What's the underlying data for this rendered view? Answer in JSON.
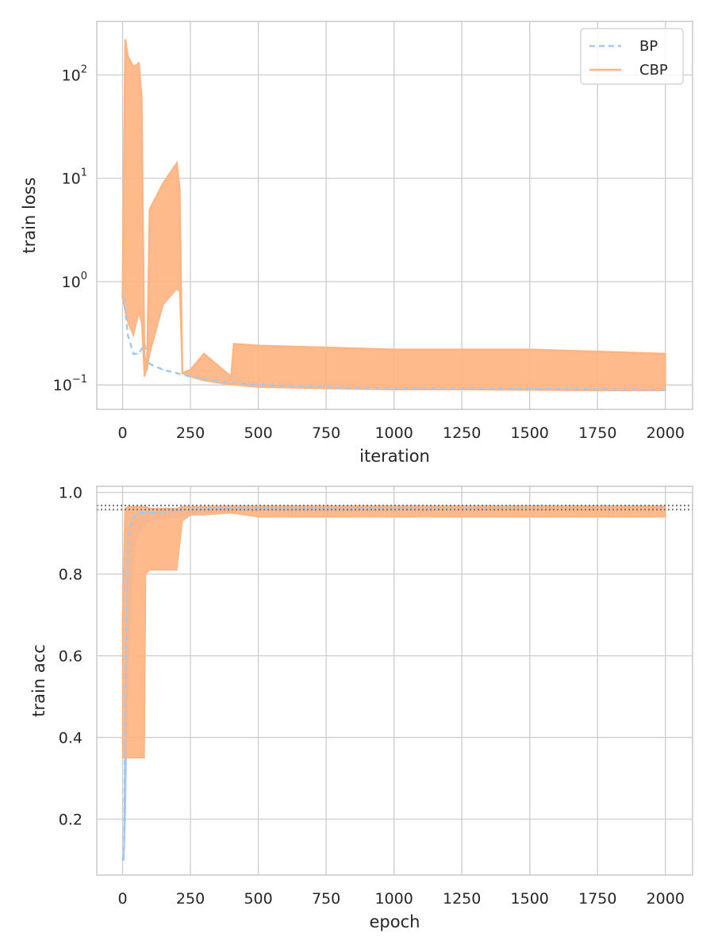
{
  "colors": {
    "bp": "#a1c9f4",
    "cbp": "#ffb482",
    "grid": "#cccccc",
    "frame": "#cccccc",
    "reference": "#707070"
  },
  "chart_data": [
    {
      "type": "line",
      "xlabel": "iteration",
      "ylabel": "train loss",
      "yscale": "log",
      "xlim": [
        -95,
        2100
      ],
      "ylim": [
        0.058,
        330
      ],
      "xticks": [
        0,
        250,
        500,
        750,
        1000,
        1250,
        1500,
        1750,
        2000
      ],
      "yticks": [
        0.1,
        1,
        10,
        100
      ],
      "yticklabels": [
        {
          "base": "10",
          "exp": "−1"
        },
        {
          "base": "10",
          "exp": "0"
        },
        {
          "base": "10",
          "exp": "1"
        },
        {
          "base": "10",
          "exp": "2"
        }
      ],
      "grid": true,
      "legend": {
        "position": "top-right",
        "entries": [
          {
            "label": "BP",
            "style": "dashed",
            "color": "#a1c9f4"
          },
          {
            "label": "CBP",
            "style": "solid",
            "color": "#ffb482"
          }
        ]
      },
      "series": [
        {
          "name": "BP",
          "style": "dashed",
          "color": "#a1c9f4",
          "x": [
            0,
            20,
            40,
            60,
            80,
            100,
            150,
            200,
            250,
            300,
            400,
            500,
            750,
            1000,
            1500,
            2000
          ],
          "y": [
            0.9,
            0.3,
            0.2,
            0.2,
            0.25,
            0.16,
            0.14,
            0.13,
            0.12,
            0.115,
            0.105,
            0.1,
            0.095,
            0.093,
            0.092,
            0.09
          ]
        },
        {
          "name": "CBP",
          "style": "solid",
          "color": "#ffb482",
          "x": [
            0,
            10,
            20,
            40,
            60,
            70,
            80,
            90,
            100,
            150,
            200,
            210,
            220,
            250,
            300,
            400,
            410,
            500,
            750,
            1000,
            1250,
            1500,
            1750,
            2000
          ],
          "y": [
            0.7,
            220,
            150,
            120,
            130,
            60,
            0.2,
            0.14,
            5,
            9,
            14,
            8,
            0.13,
            0.14,
            0.2,
            0.12,
            0.25,
            0.24,
            0.23,
            0.22,
            0.22,
            0.22,
            0.21,
            0.2
          ],
          "y_low": [
            0.7,
            0.5,
            0.4,
            0.3,
            0.5,
            0.4,
            0.12,
            0.14,
            0.2,
            0.6,
            0.85,
            0.8,
            0.13,
            0.12,
            0.11,
            0.1,
            0.1,
            0.095,
            0.092,
            0.09,
            0.09,
            0.089,
            0.088,
            0.088
          ]
        }
      ]
    },
    {
      "type": "line",
      "xlabel": "epoch",
      "ylabel": "train acc",
      "xlim": [
        -95,
        2100
      ],
      "ylim": [
        0.063,
        1.015
      ],
      "xticks": [
        0,
        250,
        500,
        750,
        1000,
        1250,
        1500,
        1750,
        2000
      ],
      "yticks": [
        0.2,
        0.4,
        0.6,
        0.8,
        1.0
      ],
      "yticklabels": [
        "0.2",
        "0.4",
        "0.6",
        "0.8",
        "1.0"
      ],
      "grid": true,
      "reference_lines": [
        0.958,
        0.968
      ],
      "series": [
        {
          "name": "BP",
          "style": "dashed",
          "color": "#a1c9f4",
          "x": [
            0,
            5,
            10,
            20,
            40,
            60,
            80,
            100,
            200,
            300,
            500,
            1000,
            1500,
            2000
          ],
          "y": [
            0.1,
            0.12,
            0.5,
            0.9,
            0.94,
            0.95,
            0.95,
            0.95,
            0.955,
            0.96,
            0.962,
            0.963,
            0.964,
            0.965
          ],
          "y_low": [
            0.1,
            0.1,
            0.2,
            0.6,
            0.85,
            0.9,
            0.92,
            0.93,
            0.94,
            0.95,
            0.955,
            0.957,
            0.958,
            0.96
          ]
        },
        {
          "name": "CBP",
          "style": "solid",
          "color": "#ffb482",
          "x": [
            0,
            10,
            20,
            40,
            60,
            80,
            85,
            100,
            150,
            200,
            220,
            250,
            300,
            400,
            500,
            750,
            1000,
            1250,
            1500,
            1750,
            2000
          ],
          "y": [
            0.66,
            0.96,
            0.965,
            0.965,
            0.965,
            0.965,
            0.965,
            0.96,
            0.96,
            0.96,
            0.965,
            0.965,
            0.965,
            0.966,
            0.966,
            0.966,
            0.966,
            0.966,
            0.966,
            0.966,
            0.966
          ],
          "y_low": [
            0.35,
            0.35,
            0.35,
            0.35,
            0.35,
            0.35,
            0.8,
            0.81,
            0.81,
            0.81,
            0.93,
            0.945,
            0.945,
            0.95,
            0.94,
            0.94,
            0.94,
            0.94,
            0.94,
            0.94,
            0.94
          ]
        }
      ]
    }
  ]
}
